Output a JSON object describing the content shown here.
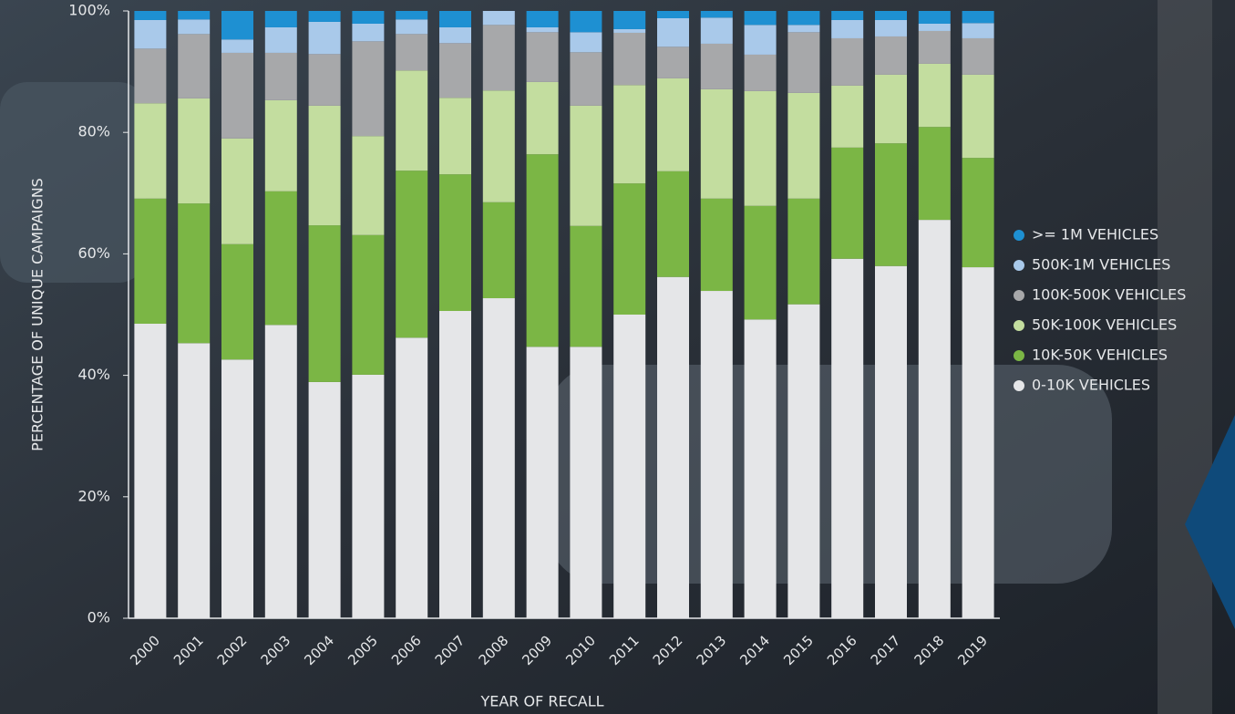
{
  "chart_data": {
    "type": "stacked_bar",
    "x_label": "YEAR OF RECALL",
    "y_label": "PERCENTAGE OF UNIQUE CAMPAIGNS",
    "categories": [
      "2000",
      "2001",
      "2002",
      "2003",
      "2004",
      "2005",
      "2006",
      "2007",
      "2008",
      "2009",
      "2010",
      "2011",
      "2012",
      "2013",
      "2014",
      "2015",
      "2016",
      "2017",
      "2018",
      "2019"
    ],
    "series": [
      {
        "name": "0-10K VEHICLES",
        "color": "#e5e6e8",
        "values": [
          48.5,
          45.3,
          42.6,
          48.3,
          38.9,
          40.1,
          46.2,
          50.6,
          52.7,
          44.7,
          44.7,
          50.0,
          56.2,
          53.9,
          49.2,
          51.7,
          59.2,
          58.0,
          65.6,
          57.8
        ]
      },
      {
        "name": "10K-50K VEHICLES",
        "color": "#7bb645",
        "values": [
          20.6,
          23.0,
          19.0,
          22.0,
          25.8,
          23.0,
          27.5,
          22.5,
          15.8,
          31.7,
          19.9,
          21.6,
          17.4,
          15.2,
          18.7,
          17.4,
          18.3,
          20.2,
          15.3,
          18.0
        ]
      },
      {
        "name": "50K-100K VEHICLES",
        "color": "#c3dd9f",
        "values": [
          15.7,
          17.3,
          17.4,
          15.0,
          19.7,
          16.3,
          16.5,
          12.6,
          18.4,
          11.9,
          19.8,
          16.2,
          15.3,
          18.0,
          18.9,
          17.4,
          10.2,
          11.3,
          10.4,
          13.7
        ]
      },
      {
        "name": "100K-500K VEHICLES",
        "color": "#a7a8aa",
        "values": [
          9.0,
          10.6,
          14.1,
          7.8,
          8.5,
          15.6,
          6.0,
          9.0,
          10.8,
          8.2,
          8.8,
          8.6,
          5.2,
          7.5,
          6.0,
          10.0,
          7.8,
          6.3,
          5.4,
          6.0
        ]
      },
      {
        "name": "500K-1M VEHICLES",
        "color": "#a9c9ea",
        "values": [
          4.7,
          2.4,
          2.2,
          4.2,
          5.3,
          2.9,
          2.4,
          2.6,
          2.3,
          0.8,
          3.3,
          0.6,
          4.7,
          4.3,
          4.9,
          1.2,
          3.0,
          2.7,
          1.2,
          2.5
        ]
      },
      {
        "name": ">= 1M VEHICLES",
        "color": "#1e90d2",
        "values": [
          1.5,
          1.4,
          4.7,
          2.7,
          1.8,
          2.1,
          1.4,
          2.7,
          0,
          2.7,
          3.5,
          3.0,
          1.2,
          1.1,
          2.3,
          2.3,
          1.5,
          1.5,
          2.1,
          2.0
        ]
      }
    ],
    "ylim": [
      0,
      100
    ],
    "yticks": [
      {
        "value": 0,
        "label": "0%"
      },
      {
        "value": 20,
        "label": "20%"
      },
      {
        "value": 40,
        "label": "40%"
      },
      {
        "value": 60,
        "label": "60%"
      },
      {
        "value": 80,
        "label": "80%"
      },
      {
        "value": 100,
        "label": "100%"
      }
    ]
  }
}
